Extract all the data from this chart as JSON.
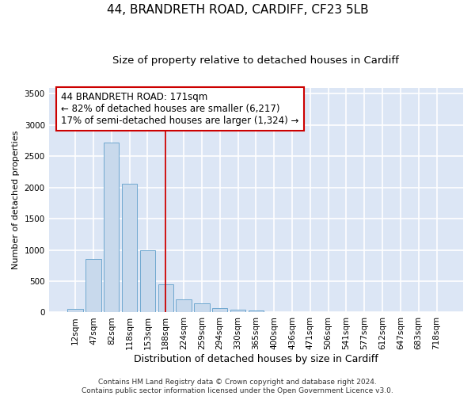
{
  "title": "44, BRANDRETH ROAD, CARDIFF, CF23 5LB",
  "subtitle": "Size of property relative to detached houses in Cardiff",
  "xlabel": "Distribution of detached houses by size in Cardiff",
  "ylabel": "Number of detached properties",
  "bar_color": "#c8d9ec",
  "bar_edge_color": "#6fa8d0",
  "background_color": "#dce6f5",
  "grid_color": "#ffffff",
  "fig_background": "#ffffff",
  "categories": [
    "12sqm",
    "47sqm",
    "82sqm",
    "118sqm",
    "153sqm",
    "188sqm",
    "224sqm",
    "259sqm",
    "294sqm",
    "330sqm",
    "365sqm",
    "400sqm",
    "436sqm",
    "471sqm",
    "506sqm",
    "541sqm",
    "577sqm",
    "612sqm",
    "647sqm",
    "683sqm",
    "718sqm"
  ],
  "values": [
    55,
    850,
    2720,
    2060,
    1000,
    450,
    210,
    140,
    65,
    50,
    30,
    10,
    5,
    3,
    1,
    0,
    0,
    0,
    0,
    0,
    0
  ],
  "ylim": [
    0,
    3600
  ],
  "yticks": [
    0,
    500,
    1000,
    1500,
    2000,
    2500,
    3000,
    3500
  ],
  "vline_x": 5.0,
  "vline_color": "#cc0000",
  "annotation_text": "44 BRANDRETH ROAD: 171sqm\n← 82% of detached houses are smaller (6,217)\n17% of semi-detached houses are larger (1,324) →",
  "annotation_box_color": "#ffffff",
  "annotation_box_edge_color": "#cc0000",
  "footer_text": "Contains HM Land Registry data © Crown copyright and database right 2024.\nContains public sector information licensed under the Open Government Licence v3.0.",
  "title_fontsize": 11,
  "subtitle_fontsize": 9.5,
  "tick_fontsize": 7.5,
  "annotation_fontsize": 8.5,
  "ylabel_fontsize": 8,
  "xlabel_fontsize": 9,
  "footer_fontsize": 6.5
}
